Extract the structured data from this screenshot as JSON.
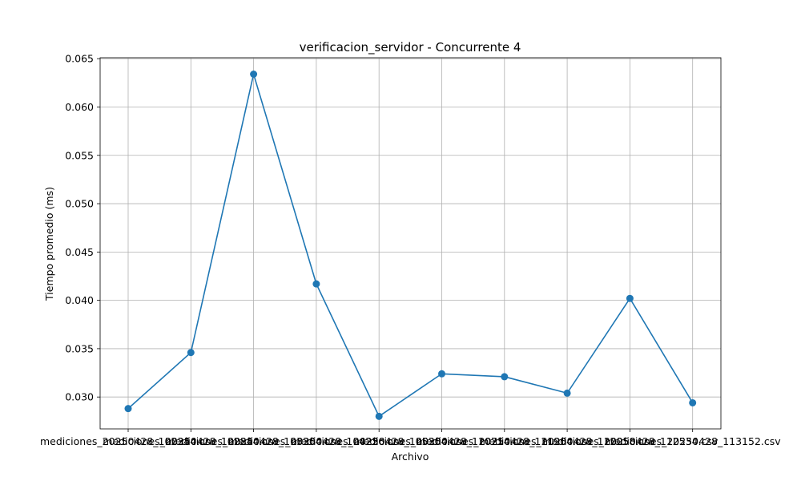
{
  "chart_data": {
    "type": "line",
    "title": "verificacion_servidor - Concurrente 4",
    "xlabel": "Archivo",
    "ylabel": "Tiempo promedio (ms)",
    "categories": [
      "mediciones_20250428_102344.csv",
      "mediciones_20250428_102844.csv",
      "mediciones_20250428_103304.csv",
      "mediciones_20250428_104226.csv",
      "mediciones_20250428_105304.csv",
      "mediciones_20250428_110714.csv",
      "mediciones_20250428_111904.csv",
      "mediciones_20250428_112058.csv",
      "mediciones_20250428_112534.csv",
      "mediciones_20250428_113152.csv"
    ],
    "series": [
      {
        "values": [
          0.0288,
          0.0346,
          0.0634,
          0.0417,
          0.028,
          0.0324,
          0.0321,
          0.0304,
          0.0402,
          0.0294
        ]
      }
    ],
    "y_ticks": [
      "0.030",
      "0.035",
      "0.040",
      "0.045",
      "0.050",
      "0.055",
      "0.060",
      "0.065"
    ],
    "ylim": [
      0.0267,
      0.0651
    ],
    "grid": true,
    "colors": {
      "series": "#1f77b4"
    }
  }
}
